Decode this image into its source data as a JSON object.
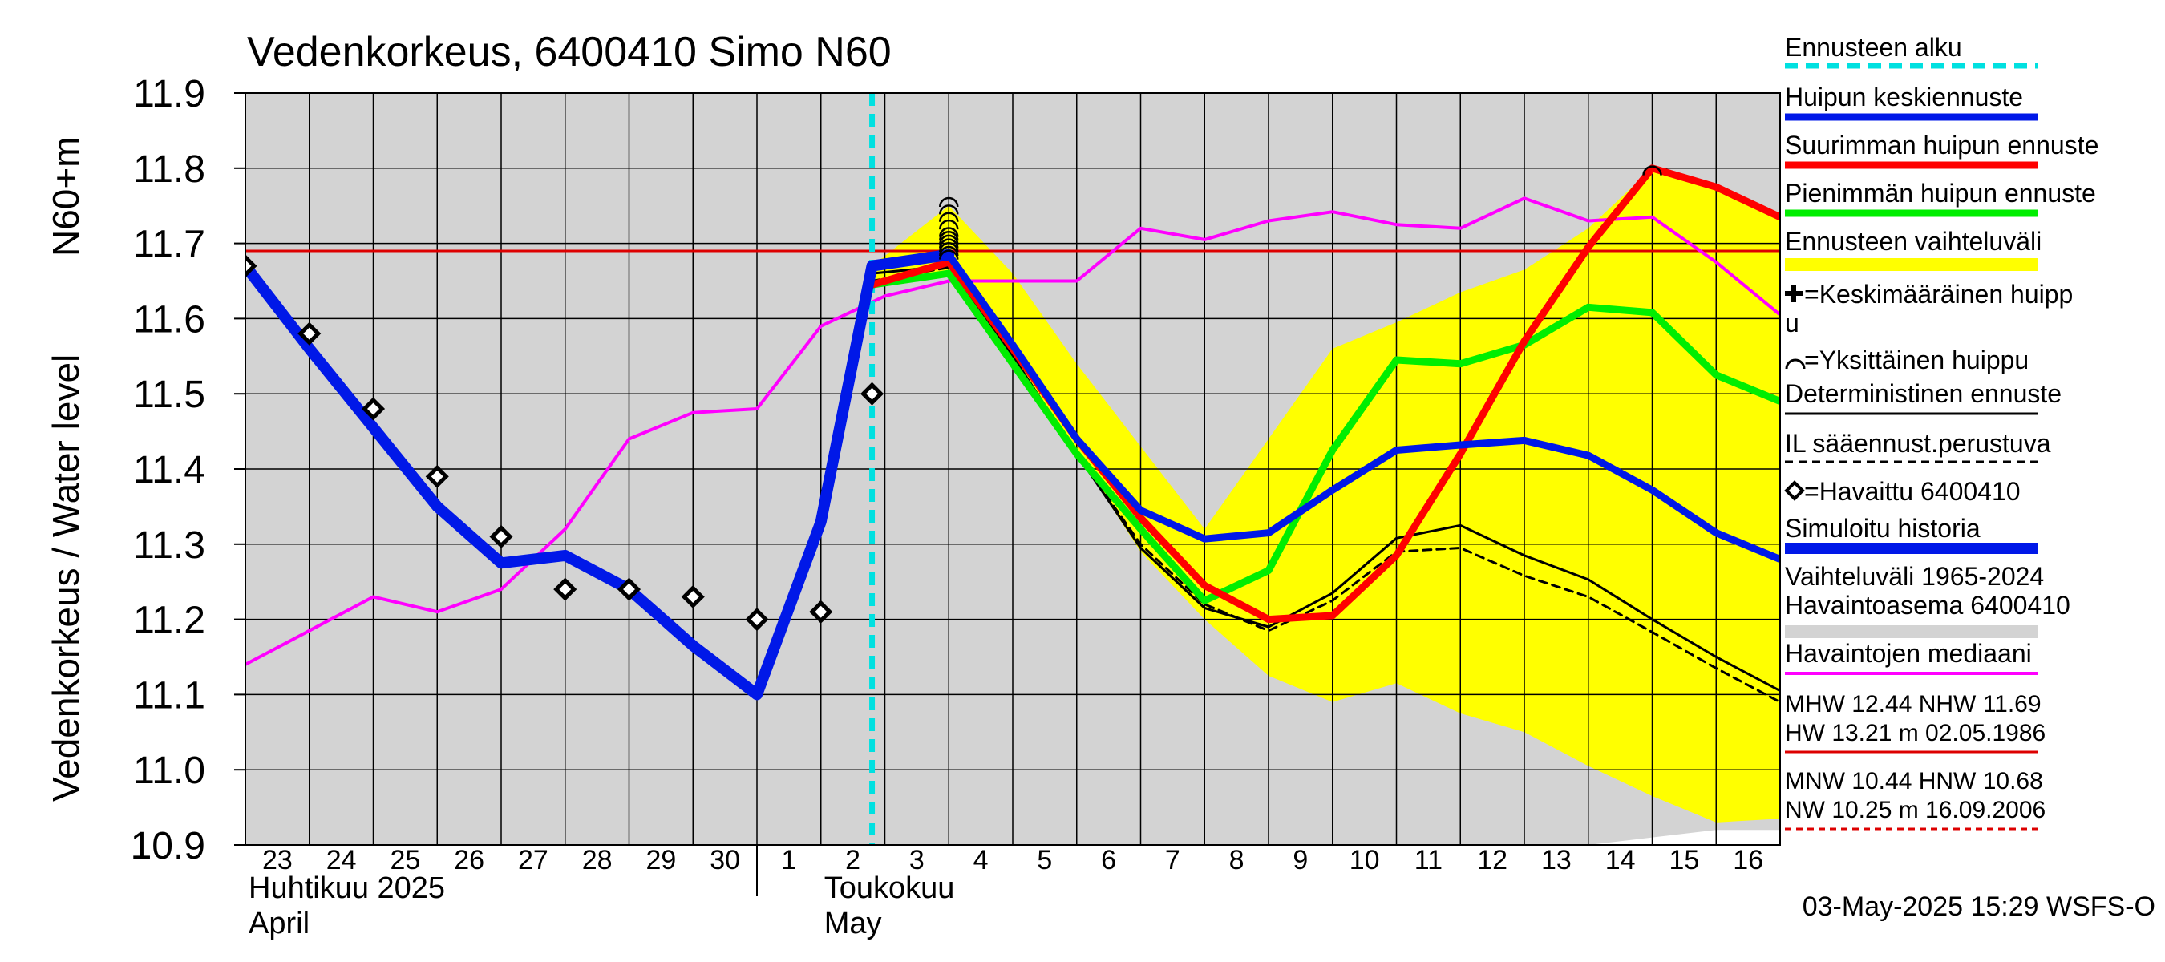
{
  "chart_data": {
    "type": "line",
    "title": "Vedenkorkeus, 6400410 Simo N60",
    "ylabel": "Vedenkorkeus / Water level",
    "ylabel_unit": "N60+m",
    "ylim": [
      10.9,
      11.9
    ],
    "yticks": [
      "11.9",
      "11.8",
      "11.7",
      "11.6",
      "11.5",
      "11.4",
      "11.3",
      "11.2",
      "11.1",
      "11.0",
      "10.9"
    ],
    "x_start_day": 23,
    "x_end_day": 47,
    "day_labels": [
      "23",
      "24",
      "25",
      "26",
      "27",
      "28",
      "29",
      "30",
      "1",
      "2",
      "3",
      "4",
      "5",
      "6",
      "7",
      "8",
      "9",
      "10",
      "11",
      "12",
      "13",
      "14",
      "15",
      "16"
    ],
    "month_labels": [
      {
        "fi": "Huhtikuu  2025",
        "en": "April",
        "day": 23
      },
      {
        "fi": "Toukokuu",
        "en": "May",
        "day": 32
      }
    ],
    "forecast_start_day": 32.8,
    "reference_level": 11.69,
    "timestamp": "03-May-2025 15:29 WSFS-O",
    "legend": {
      "forecast_start": "Ennusteen alku",
      "mean_peak": "Huipun keskiennuste",
      "max_peak": "Suurimman huipun ennuste",
      "min_peak": "Pienimmän huipun ennuste",
      "forecast_range": "Ennusteen vaihteluväli",
      "avg_peak_line1": "=Keskimääräinen huipp",
      "avg_peak_line2": "u",
      "single_peak": "=Yksittäinen huippu",
      "deterministic": "Deterministinen ennuste",
      "il_based": "IL sääennust.perustuva",
      "observed": "=Havaittu 6400410",
      "simulated": "Simuloitu historia",
      "range_hist_line1": "Vaihteluväli 1965-2024",
      "range_hist_line2": " Havaintoasema 6400410",
      "median": "Havaintojen mediaani",
      "mhw_line": "MHW  12.44 NHW  11.69",
      "hw_line": "HW  13.21 m 02.05.1986",
      "mnw_line": "MNW  10.44 HNW  10.68",
      "nw_line": "NW  10.25 m 16.09.2006"
    },
    "colors": {
      "forecast_start": "#00e0e0",
      "mean": "#0018e8",
      "max": "#ff0000",
      "min": "#00ee00",
      "range": "#ffff00",
      "median": "#ff00ff",
      "hist_range": "#d3d3d3",
      "reference": "#dd0000"
    },
    "series": {
      "hist_range_upper": [
        [
          23,
          11.9
        ],
        [
          47,
          11.9
        ]
      ],
      "hist_range_lower": [
        [
          23,
          10.9
        ],
        [
          44,
          10.9
        ],
        [
          45,
          10.91
        ],
        [
          46,
          10.92
        ],
        [
          47,
          10.92
        ]
      ],
      "median": [
        [
          23,
          11.14
        ],
        [
          24,
          11.185
        ],
        [
          25,
          11.23
        ],
        [
          26,
          11.21
        ],
        [
          27,
          11.24
        ],
        [
          28,
          11.32
        ],
        [
          29,
          11.44
        ],
        [
          30,
          11.475
        ],
        [
          31,
          11.48
        ],
        [
          32,
          11.59
        ],
        [
          33,
          11.63
        ],
        [
          34,
          11.65
        ],
        [
          35,
          11.65
        ],
        [
          36,
          11.65
        ],
        [
          37,
          11.72
        ],
        [
          38,
          11.705
        ],
        [
          39,
          11.73
        ],
        [
          40,
          11.742
        ],
        [
          41,
          11.725
        ],
        [
          42,
          11.72
        ],
        [
          43,
          11.76
        ],
        [
          44,
          11.73
        ],
        [
          45,
          11.735
        ],
        [
          46,
          11.675
        ],
        [
          47,
          11.605
        ]
      ],
      "range_upper": [
        [
          32.8,
          11.67
        ],
        [
          34,
          11.75
        ],
        [
          35,
          11.66
        ],
        [
          36,
          11.54
        ],
        [
          37,
          11.43
        ],
        [
          38,
          11.32
        ],
        [
          39,
          11.44
        ],
        [
          40,
          11.56
        ],
        [
          41,
          11.595
        ],
        [
          42,
          11.635
        ],
        [
          43,
          11.665
        ],
        [
          44,
          11.72
        ],
        [
          45,
          11.8
        ],
        [
          46,
          11.775
        ],
        [
          47,
          11.735
        ]
      ],
      "range_lower": [
        [
          32.8,
          11.64
        ],
        [
          34,
          11.665
        ],
        [
          35,
          11.55
        ],
        [
          36,
          11.42
        ],
        [
          37,
          11.29
        ],
        [
          38,
          11.2
        ],
        [
          39,
          11.125
        ],
        [
          40,
          11.09
        ],
        [
          41,
          11.115
        ],
        [
          42,
          11.075
        ],
        [
          43,
          11.05
        ],
        [
          44,
          11.005
        ],
        [
          45,
          10.965
        ],
        [
          46,
          10.93
        ],
        [
          47,
          10.935
        ]
      ],
      "simulated": [
        [
          23,
          11.67
        ],
        [
          24,
          11.56
        ],
        [
          25,
          11.455
        ],
        [
          26,
          11.35
        ],
        [
          27,
          11.275
        ],
        [
          28,
          11.285
        ],
        [
          29,
          11.24
        ],
        [
          30,
          11.165
        ],
        [
          31,
          11.1
        ],
        [
          32,
          11.33
        ],
        [
          32.8,
          11.67
        ],
        [
          34,
          11.685
        ]
      ],
      "max_peak": [
        [
          32.8,
          11.645
        ],
        [
          34,
          11.675
        ],
        [
          35,
          11.56
        ],
        [
          36,
          11.44
        ],
        [
          37,
          11.335
        ],
        [
          38,
          11.245
        ],
        [
          39,
          11.2
        ],
        [
          40,
          11.205
        ],
        [
          41,
          11.285
        ],
        [
          42,
          11.42
        ],
        [
          43,
          11.57
        ],
        [
          44,
          11.695
        ],
        [
          45,
          11.8
        ],
        [
          46,
          11.775
        ],
        [
          47,
          11.735
        ]
      ],
      "min_peak": [
        [
          32.8,
          11.645
        ],
        [
          34,
          11.66
        ],
        [
          35,
          11.54
        ],
        [
          36,
          11.42
        ],
        [
          37,
          11.32
        ],
        [
          38,
          11.225
        ],
        [
          39,
          11.265
        ],
        [
          40,
          11.425
        ],
        [
          41,
          11.545
        ],
        [
          42,
          11.54
        ],
        [
          43,
          11.565
        ],
        [
          44,
          11.615
        ],
        [
          45,
          11.608
        ],
        [
          46,
          11.525
        ],
        [
          47,
          11.49
        ]
      ],
      "mean_peak": [
        [
          32.8,
          11.67
        ],
        [
          34,
          11.685
        ],
        [
          35,
          11.565
        ],
        [
          36,
          11.44
        ],
        [
          37,
          11.345
        ],
        [
          38,
          11.307
        ],
        [
          39,
          11.315
        ],
        [
          40,
          11.372
        ],
        [
          41,
          11.425
        ],
        [
          42,
          11.432
        ],
        [
          43,
          11.438
        ],
        [
          44,
          11.418
        ],
        [
          45,
          11.372
        ],
        [
          46,
          11.315
        ],
        [
          47,
          11.28
        ]
      ],
      "deterministic": [
        [
          32.8,
          11.66
        ],
        [
          34,
          11.67
        ],
        [
          35,
          11.55
        ],
        [
          36,
          11.42
        ],
        [
          37,
          11.295
        ],
        [
          38,
          11.215
        ],
        [
          39,
          11.19
        ],
        [
          40,
          11.235
        ],
        [
          41,
          11.308
        ],
        [
          42,
          11.325
        ],
        [
          43,
          11.285
        ],
        [
          44,
          11.253
        ],
        [
          45,
          11.2
        ],
        [
          46,
          11.15
        ],
        [
          47,
          11.105
        ]
      ],
      "il_based": [
        [
          32.8,
          11.65
        ],
        [
          34,
          11.668
        ],
        [
          35,
          11.55
        ],
        [
          36,
          11.42
        ],
        [
          37,
          11.3
        ],
        [
          38,
          11.22
        ],
        [
          39,
          11.185
        ],
        [
          40,
          11.225
        ],
        [
          41,
          11.29
        ],
        [
          42,
          11.295
        ],
        [
          43,
          11.258
        ],
        [
          44,
          11.23
        ],
        [
          45,
          11.183
        ],
        [
          46,
          11.135
        ],
        [
          47,
          11.09
        ]
      ],
      "observed": [
        [
          23,
          11.67
        ],
        [
          24,
          11.58
        ],
        [
          25,
          11.48
        ],
        [
          26,
          11.39
        ],
        [
          27,
          11.31
        ],
        [
          28,
          11.24
        ],
        [
          29,
          11.24
        ],
        [
          30,
          11.23
        ],
        [
          31,
          11.2
        ],
        [
          32,
          11.21
        ],
        [
          32.8,
          11.5
        ]
      ],
      "peak_markers": [
        [
          34,
          11.755
        ],
        [
          34,
          11.745
        ],
        [
          34,
          11.735
        ],
        [
          34,
          11.725
        ],
        [
          34,
          11.715
        ],
        [
          34,
          11.71
        ],
        [
          34,
          11.705
        ],
        [
          34,
          11.7
        ],
        [
          34,
          11.695
        ],
        [
          34,
          11.69
        ],
        [
          34,
          11.685
        ],
        [
          45,
          11.797
        ]
      ]
    }
  }
}
